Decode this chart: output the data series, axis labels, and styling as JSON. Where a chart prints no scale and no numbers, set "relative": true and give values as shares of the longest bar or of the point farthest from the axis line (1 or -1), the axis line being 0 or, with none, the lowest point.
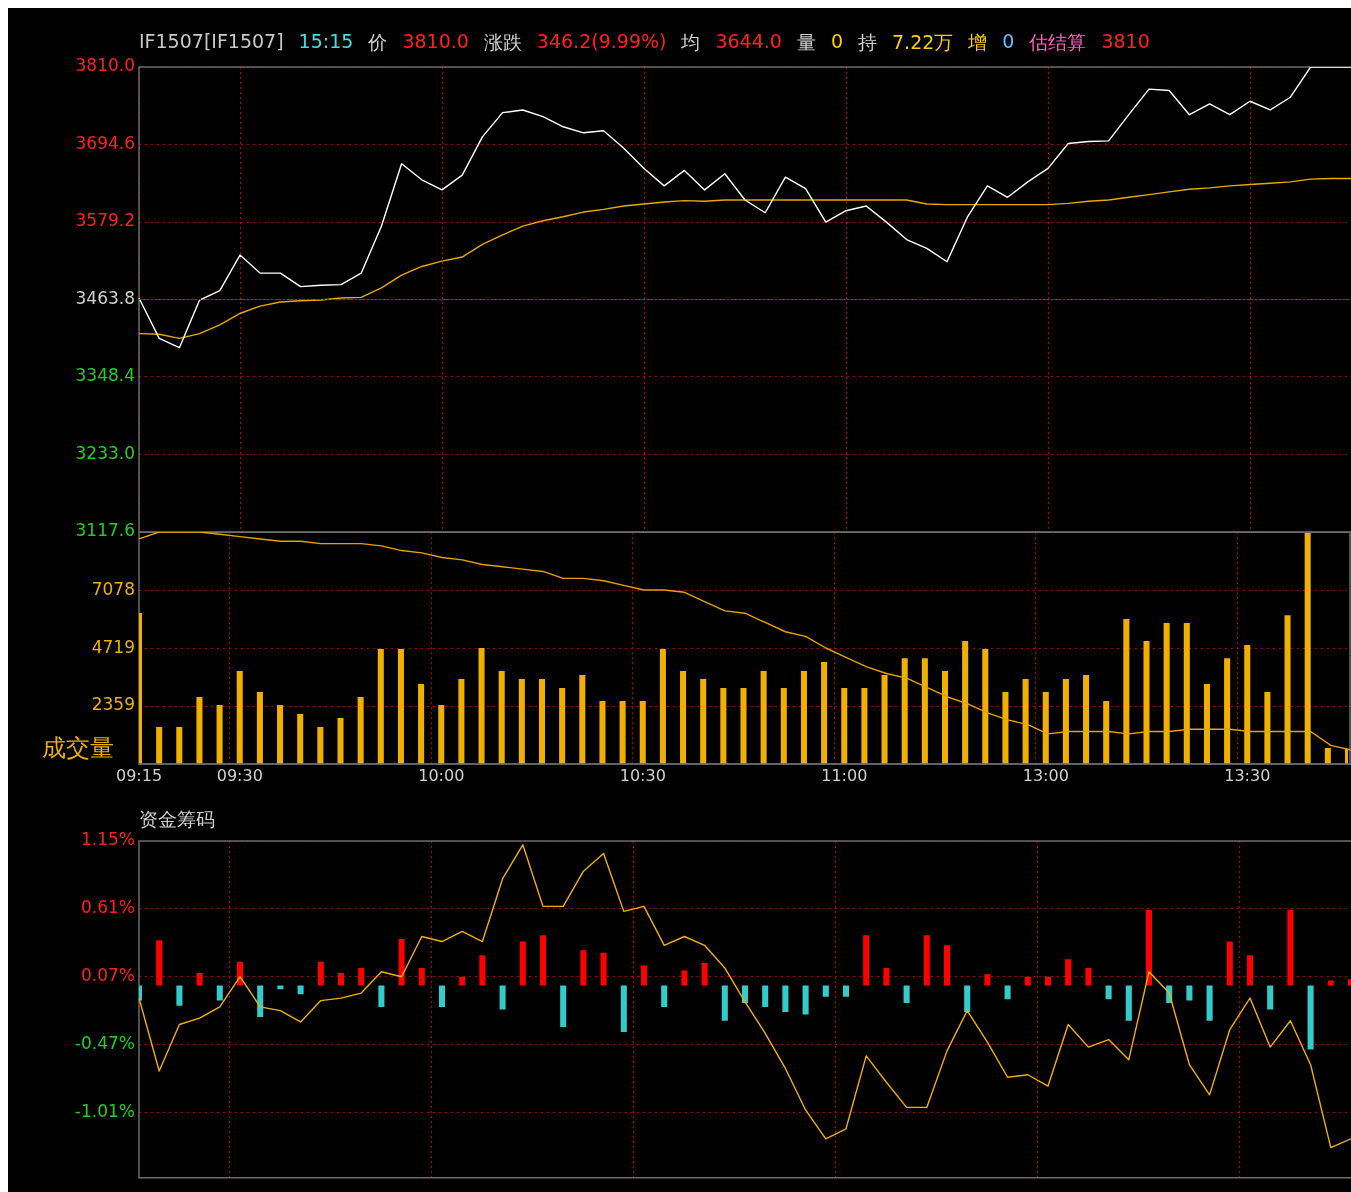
{
  "chart_data": [
    {
      "type": "line",
      "annotations": [
        "IF1507[IF1507]",
        "15:15",
        "价",
        "3810.0",
        "涨跌",
        "346.2(9.99%)",
        "均",
        "3644.0",
        "量",
        "0",
        "持",
        "7.22万",
        "增",
        "0",
        "估结算",
        "3810"
      ],
      "categories": [
        null,
        null,
        null,
        null,
        null,
        null,
        null,
        null,
        null,
        null,
        null,
        null,
        null,
        null,
        null,
        null,
        null,
        null,
        null,
        null,
        null,
        null,
        null,
        null,
        null,
        null,
        null,
        null,
        null,
        null,
        null,
        null,
        null,
        null,
        null,
        null,
        null,
        null,
        null,
        null,
        null,
        null,
        null,
        null,
        null,
        null,
        null,
        null,
        null,
        null,
        null,
        null,
        null,
        null,
        null,
        null,
        null,
        null,
        null,
        null,
        null
      ],
      "series": [
        {
          "color": "#ffffff",
          "values": [
            3466,
            3406,
            3392,
            3463,
            3477,
            3530,
            3503,
            3503,
            3483,
            3485,
            3486,
            3503,
            3573,
            3666,
            3642,
            3627,
            3649,
            3706,
            3742,
            3746,
            3736,
            3721,
            3712,
            3715,
            3689,
            3659,
            3633,
            3656,
            3627,
            3651,
            3612,
            3593,
            3646,
            3629,
            3579,
            3596,
            3603,
            3579,
            3553,
            3540,
            3520,
            3586,
            3633,
            3616,
            3639,
            3659,
            3696,
            3699,
            3700,
            3739,
            3777,
            3775,
            3739,
            3755,
            3739,
            3759,
            3746,
            3765,
            3810,
            3810,
            3810
          ]
        },
        {
          "color": "#e8a800",
          "values": [
            3413,
            3412,
            3406,
            3413,
            3426,
            3443,
            3454,
            3460,
            3462,
            3463,
            3466,
            3467,
            3481,
            3500,
            3513,
            3521,
            3527,
            3546,
            3560,
            3573,
            3581,
            3587,
            3594,
            3598,
            3603,
            3606,
            3609,
            3611,
            3610,
            3612,
            3612,
            3612,
            3612,
            3612,
            3612,
            3612,
            3612,
            3612,
            3612,
            3606,
            3605,
            3605,
            3605,
            3605,
            3605,
            3605,
            3607,
            3610,
            3612,
            3616,
            3620,
            3624,
            3628,
            3630,
            3633,
            3635,
            3637,
            3639,
            3643,
            3644,
            3644
          ]
        }
      ],
      "ylim": [
        3117.6,
        3810.0
      ],
      "yticks": [
        {
          "value": 3810,
          "label": "3810.0"
        },
        3694.6,
        3579.2,
        3463.8,
        3348.4,
        {
          "value": 3233,
          "label": "3233.0"
        },
        3117.6
      ],
      "ref_lines": [
        {
          "axis": "y",
          "value": 3463.8,
          "color": "#ff0000",
          "line_style": "dotted"
        }
      ],
      "grid": true,
      "tick_labels": "y"
    },
    {
      "type": "bar",
      "ylabel": "成交量",
      "categories": [
        "09:15",
        null,
        null,
        null,
        null,
        "09:30",
        null,
        null,
        null,
        null,
        null,
        null,
        null,
        null,
        null,
        "10:00",
        null,
        null,
        null,
        null,
        null,
        null,
        null,
        null,
        null,
        "10:30",
        null,
        null,
        null,
        null,
        null,
        null,
        null,
        null,
        null,
        "11:00",
        null,
        null,
        null,
        null,
        null,
        null,
        null,
        null,
        null,
        "13:00",
        null,
        null,
        null,
        null,
        null,
        null,
        null,
        null,
        null,
        "13:30",
        null,
        null,
        null,
        null,
        null
      ],
      "values": [
        6150,
        1510,
        1510,
        2730,
        2400,
        3790,
        2930,
        2400,
        2040,
        1510,
        1870,
        2730,
        4680,
        4680,
        3260,
        2400,
        3460,
        4720,
        3790,
        3460,
        3460,
        3090,
        3620,
        2560,
        2560,
        2560,
        4680,
        3790,
        3460,
        3090,
        3090,
        3790,
        3090,
        3790,
        4150,
        3090,
        3090,
        3620,
        4310,
        4310,
        3790,
        5010,
        4680,
        2930,
        3460,
        2930,
        3460,
        3620,
        2560,
        5900,
        5010,
        5740,
        5740,
        3260,
        4310,
        4840,
        2930,
        6060,
        9400,
        650,
        630
      ],
      "color": "#f0b000",
      "ylim": [
        0,
        9437
      ],
      "yticks": [
        2359,
        4719,
        7078
      ],
      "grid": true
    },
    {
      "type": "line",
      "relative": true,
      "categories": [
        null,
        null,
        null,
        null,
        null,
        null,
        null,
        null,
        null,
        null,
        null,
        null,
        null,
        null,
        null,
        null,
        null,
        null,
        null,
        null,
        null,
        null,
        null,
        null,
        null,
        null,
        null,
        null,
        null,
        null,
        null,
        null,
        null,
        null,
        null,
        null,
        null,
        null,
        null,
        null,
        null,
        null,
        null,
        null,
        null,
        null,
        null,
        null,
        null,
        null,
        null,
        null,
        null,
        null,
        null,
        null,
        null,
        null,
        null,
        null,
        null
      ],
      "values": [
        0.97,
        1,
        1,
        1,
        0.99,
        0.98,
        0.97,
        0.96,
        0.96,
        0.95,
        0.95,
        0.95,
        0.94,
        0.92,
        0.91,
        0.89,
        0.88,
        0.86,
        0.85,
        0.84,
        0.83,
        0.8,
        0.8,
        0.79,
        0.77,
        0.75,
        0.75,
        0.74,
        0.7,
        0.66,
        0.65,
        0.61,
        0.57,
        0.55,
        0.5,
        0.46,
        0.42,
        0.39,
        0.37,
        0.33,
        0.29,
        0.26,
        0.22,
        0.19,
        0.17,
        0.13,
        0.14,
        0.14,
        0.14,
        0.13,
        0.14,
        0.14,
        0.15,
        0.15,
        0.15,
        0.14,
        0.14,
        0.14,
        0.14,
        0.08,
        0.06
      ],
      "color": "#e8a000",
      "tick_labels": false
    },
    {
      "type": "bar",
      "title": "资金筹码",
      "categories": [
        null,
        null,
        null,
        null,
        null,
        null,
        null,
        null,
        null,
        null,
        null,
        null,
        null,
        null,
        null,
        null,
        null,
        null,
        null,
        null,
        null,
        null,
        null,
        null,
        null,
        null,
        null,
        null,
        null,
        null,
        null,
        null,
        null,
        null,
        null,
        null,
        null,
        null,
        null,
        null,
        null,
        null,
        null,
        null,
        null,
        null,
        null,
        null,
        null,
        null,
        null,
        null,
        null,
        null,
        null,
        null,
        null,
        null,
        null,
        null,
        null
      ],
      "series": [
        {
          "type": "bar",
          "values": [
            -0.12,
            0.36,
            -0.16,
            0.1,
            -0.12,
            0.19,
            -0.25,
            -0.03,
            -0.07,
            0.19,
            0.1,
            0.14,
            -0.17,
            0.37,
            0.14,
            -0.17,
            0.07,
            0.24,
            -0.19,
            0.35,
            0.4,
            -0.33,
            0.28,
            0.26,
            -0.37,
            0.16,
            -0.17,
            0.12,
            0.18,
            -0.28,
            -0.14,
            -0.17,
            -0.21,
            -0.23,
            -0.09,
            -0.09,
            0.4,
            0.14,
            -0.14,
            0.4,
            0.32,
            -0.21,
            0.09,
            -0.11,
            0.07,
            0.07,
            0.21,
            0.14,
            -0.11,
            -0.28,
            0.6,
            -0.14,
            -0.12,
            -0.28,
            0.35,
            0.24,
            -0.19,
            0.6,
            -0.51,
            0.04,
            0.05
          ],
          "colors": [
            "#33cccc",
            "#ff0000",
            "#33cccc",
            "#ff0000",
            "#33cccc",
            "#ff0000",
            "#33cccc",
            "#33cccc",
            "#33cccc",
            "#ff0000",
            "#ff0000",
            "#ff0000",
            "#33cccc",
            "#ff0000",
            "#ff0000",
            "#33cccc",
            "#ff0000",
            "#ff0000",
            "#33cccc",
            "#ff0000",
            "#ff0000",
            "#33cccc",
            "#ff0000",
            "#ff0000",
            "#33cccc",
            "#ff0000",
            "#33cccc",
            "#ff0000",
            "#ff0000",
            "#33cccc",
            "#33cccc",
            "#33cccc",
            "#33cccc",
            "#33cccc",
            "#33cccc",
            "#33cccc",
            "#ff0000",
            "#ff0000",
            "#33cccc",
            "#ff0000",
            "#ff0000",
            "#33cccc",
            "#ff0000",
            "#33cccc",
            "#ff0000",
            "#ff0000",
            "#ff0000",
            "#ff0000",
            "#33cccc",
            "#33cccc",
            "#ff0000",
            "#33cccc",
            "#33cccc",
            "#33cccc",
            "#ff0000",
            "#ff0000",
            "#33cccc",
            "#ff0000",
            "#33cccc",
            "#ff0000",
            "#ff0000"
          ]
        },
        {
          "type": "line",
          "color": "#f0b000",
          "values": [
            -0.1,
            -0.68,
            -0.31,
            -0.26,
            -0.17,
            0.07,
            -0.17,
            -0.2,
            -0.29,
            -0.12,
            -0.1,
            -0.06,
            0.11,
            0.07,
            0.39,
            0.35,
            0.43,
            0.35,
            0.85,
            1.12,
            0.63,
            0.63,
            0.91,
            1.05,
            0.59,
            0.63,
            0.32,
            0.39,
            0.32,
            0.14,
            -0.13,
            -0.38,
            -0.66,
            -0.99,
            -1.22,
            -1.14,
            -0.56,
            -0.77,
            -0.97,
            -0.97,
            -0.52,
            -0.2,
            -0.45,
            -0.73,
            -0.71,
            -0.8,
            -0.31,
            -0.49,
            -0.43,
            -0.59,
            0.11,
            -0.06,
            -0.63,
            -0.87,
            -0.35,
            -0.1,
            -0.49,
            -0.28,
            -0.63,
            -1.29,
            -1.22
          ]
        }
      ],
      "ylim": [
        -1.53,
        1.15
      ],
      "yticks": [
        {
          "value": 1.15,
          "label": "1.15%"
        },
        {
          "value": 0.61,
          "label": "0.61%"
        },
        {
          "value": 0.07,
          "label": "0.07%"
        },
        {
          "value": -0.47,
          "label": "-0.47%"
        },
        {
          "value": -1.01,
          "label": "-1.01%"
        }
      ],
      "grid": true,
      "tick_labels": "y"
    }
  ]
}
